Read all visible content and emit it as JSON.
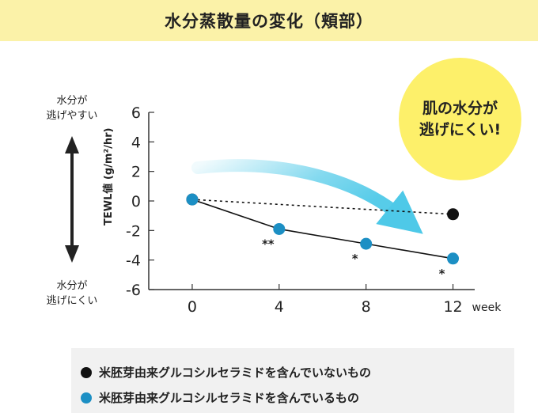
{
  "header": {
    "title": "水分蒸散量の変化（頬部）"
  },
  "side_labels": {
    "top": [
      "水分が",
      "逃げやすい"
    ],
    "bottom": [
      "水分が",
      "逃げにくい"
    ]
  },
  "badge": {
    "lines": [
      "肌の水分が",
      "逃げにくい!"
    ]
  },
  "colors": {
    "control": "#111111",
    "treated": "#1c8fc4",
    "arrow": "#4ec9e8",
    "title_bg": "#fbf2a8",
    "badge": "#fdf06a"
  },
  "chart_data": {
    "type": "line",
    "ylabel": "TEWL値 (g/m²/hr)",
    "x_unit": "week",
    "x": [
      0,
      4,
      8,
      12
    ],
    "x_tick_labels": [
      "0",
      "4",
      "8",
      "12"
    ],
    "y_ticks": [
      6,
      4,
      2,
      0,
      -2,
      -4,
      -6
    ],
    "y_tick_labels": [
      "6",
      "4",
      "2",
      "0",
      "-2",
      "-4",
      "-6"
    ],
    "ylim": [
      -6,
      6
    ],
    "xlim": [
      -2,
      13
    ],
    "series": [
      {
        "name": "米胚芽由来グルコシルセラミドを含んでいないもの",
        "x": [
          0,
          12
        ],
        "values": [
          0.1,
          -0.9
        ],
        "style": "dashed",
        "color": "#111111"
      },
      {
        "name": "米胚芽由来グルコシルセラミドを含んでいるもの",
        "x": [
          0,
          4,
          8,
          12
        ],
        "values": [
          0.1,
          -1.9,
          -2.9,
          -3.9
        ],
        "style": "solid",
        "color": "#1c8fc4"
      }
    ],
    "significance": [
      {
        "x": 4,
        "label": "**"
      },
      {
        "x": 8,
        "label": "*"
      },
      {
        "x": 12,
        "label": "*"
      }
    ],
    "grid": false
  }
}
